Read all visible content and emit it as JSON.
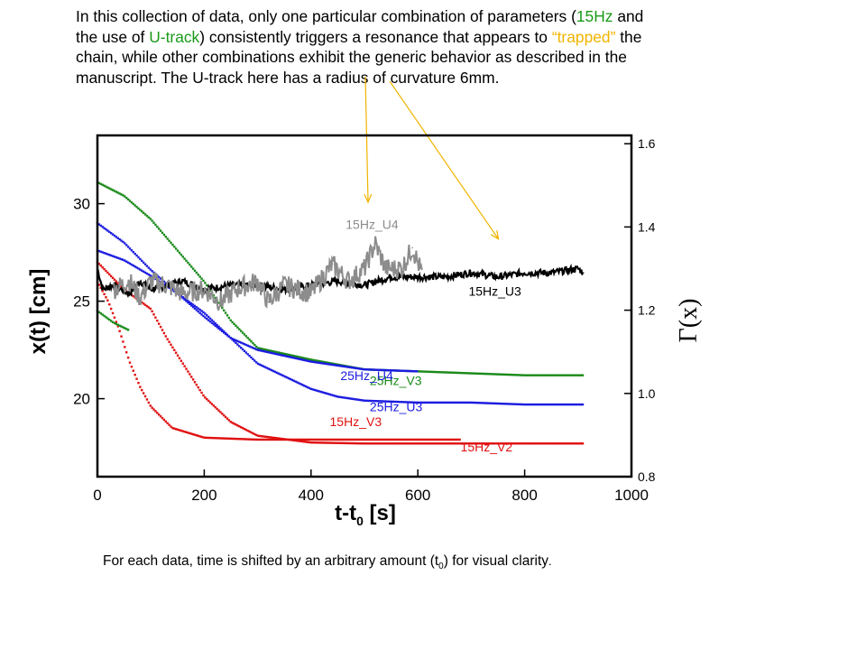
{
  "intro": {
    "part1": "In this collection of data, only one particular combination of parameters  (",
    "hz": "15Hz",
    "part2": " and the use of ",
    "utrack": "U-track",
    "part3": ") consistently triggers a resonance that appears to ",
    "trapped": "“trapped”",
    "part4": " the chain, while other combinations exhibit the generic behavior as described in the manuscript. The U-track here has a radius of curvature 6mm."
  },
  "footnote": {
    "before": "For each data, time is shifted by an arbitrary amount (t",
    "sub": "0",
    "after": ") for visual clarity",
    "period": "."
  },
  "colors": {
    "green": "#1a8a1a",
    "blue": "#1c1ce0",
    "red": "#e01010",
    "black": "#000000",
    "gray": "#8c8c8c",
    "arrow": "#f0b400"
  },
  "chart_data": {
    "type": "scatter",
    "xlabel": "t-t",
    "xlabel_sub": "0",
    "xlabel_unit": " [s]",
    "ylabel": "x(t) [cm]",
    "y2label": "Γ(x)",
    "xlim": [
      0,
      1000
    ],
    "ylim": [
      16,
      33.5
    ],
    "y2lim": [
      0.8,
      1.62
    ],
    "xticks": [
      "0",
      "200",
      "400",
      "600",
      "800",
      "1000"
    ],
    "yticks": [
      "20",
      "25",
      "30"
    ],
    "y2ticks": [
      "0.8",
      "1.0",
      "1.2",
      "1.4",
      "1.6"
    ],
    "series": [
      {
        "name": "25Hz_V3",
        "axis": "left",
        "style": "dots",
        "color": "green",
        "label_x": 510,
        "label_y": 20.7,
        "points": [
          [
            0,
            31.1
          ],
          [
            50,
            30.4
          ],
          [
            100,
            29.2
          ],
          [
            150,
            27.6
          ],
          [
            200,
            26.0
          ],
          [
            250,
            24.0
          ],
          [
            300,
            22.6
          ],
          [
            400,
            22.0
          ],
          [
            500,
            21.5
          ],
          [
            600,
            21.4
          ],
          [
            700,
            21.3
          ],
          [
            800,
            21.2
          ],
          [
            910,
            21.2
          ]
        ]
      },
      {
        "name": "25Hz_U3",
        "axis": "left",
        "style": "dots",
        "color": "blue",
        "label_x": 510,
        "label_y": 19.35,
        "points": [
          [
            0,
            29.0
          ],
          [
            50,
            28.0
          ],
          [
            100,
            26.6
          ],
          [
            150,
            25.4
          ],
          [
            200,
            24.4
          ],
          [
            250,
            23.1
          ],
          [
            300,
            21.8
          ],
          [
            400,
            20.5
          ],
          [
            450,
            20.1
          ],
          [
            500,
            19.9
          ],
          [
            600,
            19.8
          ],
          [
            700,
            19.8
          ],
          [
            800,
            19.7
          ],
          [
            910,
            19.7
          ]
        ]
      },
      {
        "name": "25Hz_U4",
        "axis": "left",
        "style": "dots",
        "color": "blue",
        "label_x": 455,
        "label_y": 20.95,
        "points": [
          [
            0,
            27.6
          ],
          [
            50,
            27.1
          ],
          [
            100,
            26.3
          ],
          [
            150,
            25.4
          ],
          [
            200,
            24.2
          ],
          [
            250,
            23.1
          ],
          [
            300,
            22.5
          ],
          [
            400,
            21.9
          ],
          [
            500,
            21.5
          ],
          [
            600,
            21.4
          ]
        ]
      },
      {
        "name": "15Hz_V3",
        "axis": "left",
        "style": "dots",
        "color": "red",
        "label_x": 435,
        "label_y": 18.6,
        "points": [
          [
            0,
            26.0
          ],
          [
            20,
            25.0
          ],
          [
            40,
            23.6
          ],
          [
            60,
            21.9
          ],
          [
            80,
            20.6
          ],
          [
            100,
            19.6
          ],
          [
            140,
            18.5
          ],
          [
            200,
            18.0
          ],
          [
            300,
            17.9
          ],
          [
            500,
            17.9
          ],
          [
            680,
            17.9
          ]
        ]
      },
      {
        "name": "15Hz_V2",
        "axis": "left",
        "style": "dots",
        "color": "red",
        "label_x": 680,
        "label_y": 17.3,
        "points": [
          [
            0,
            27.0
          ],
          [
            50,
            25.6
          ],
          [
            100,
            24.6
          ],
          [
            130,
            23.1
          ],
          [
            160,
            21.8
          ],
          [
            200,
            20.1
          ],
          [
            250,
            18.8
          ],
          [
            300,
            18.1
          ],
          [
            400,
            17.75
          ],
          [
            500,
            17.7
          ],
          [
            700,
            17.7
          ],
          [
            910,
            17.7
          ]
        ]
      },
      {
        "name": "",
        "axis": "left",
        "style": "dots",
        "color": "green",
        "points": [
          [
            0,
            24.5
          ],
          [
            30,
            23.9
          ],
          [
            60,
            23.5
          ]
        ]
      },
      {
        "name": "15Hz_U3",
        "axis": "right",
        "style": "line",
        "color": "black",
        "label_x": 695,
        "label_y": 1.235,
        "points": [
          [
            0,
            1.3
          ],
          [
            10,
            1.25
          ],
          [
            30,
            1.26
          ],
          [
            60,
            1.24
          ],
          [
            80,
            1.27
          ],
          [
            100,
            1.25
          ],
          [
            130,
            1.26
          ],
          [
            160,
            1.27
          ],
          [
            200,
            1.25
          ],
          [
            250,
            1.26
          ],
          [
            300,
            1.26
          ],
          [
            350,
            1.25
          ],
          [
            400,
            1.26
          ],
          [
            450,
            1.27
          ],
          [
            500,
            1.26
          ],
          [
            550,
            1.28
          ],
          [
            600,
            1.28
          ],
          [
            650,
            1.28
          ],
          [
            700,
            1.29
          ],
          [
            750,
            1.28
          ],
          [
            800,
            1.29
          ],
          [
            850,
            1.29
          ],
          [
            900,
            1.3
          ],
          [
            910,
            1.29
          ]
        ]
      },
      {
        "name": "15Hz_U4",
        "axis": "right",
        "style": "line",
        "color": "gray",
        "label_x": 465,
        "label_y": 1.395,
        "points": [
          [
            30,
            1.25
          ],
          [
            60,
            1.27
          ],
          [
            80,
            1.23
          ],
          [
            100,
            1.27
          ],
          [
            130,
            1.26
          ],
          [
            160,
            1.24
          ],
          [
            200,
            1.25
          ],
          [
            230,
            1.22
          ],
          [
            260,
            1.25
          ],
          [
            300,
            1.27
          ],
          [
            320,
            1.22
          ],
          [
            350,
            1.26
          ],
          [
            400,
            1.24
          ],
          [
            440,
            1.31
          ],
          [
            470,
            1.27
          ],
          [
            500,
            1.3
          ],
          [
            520,
            1.36
          ],
          [
            540,
            1.3
          ],
          [
            570,
            1.3
          ],
          [
            590,
            1.35
          ],
          [
            610,
            1.28
          ]
        ]
      }
    ]
  }
}
